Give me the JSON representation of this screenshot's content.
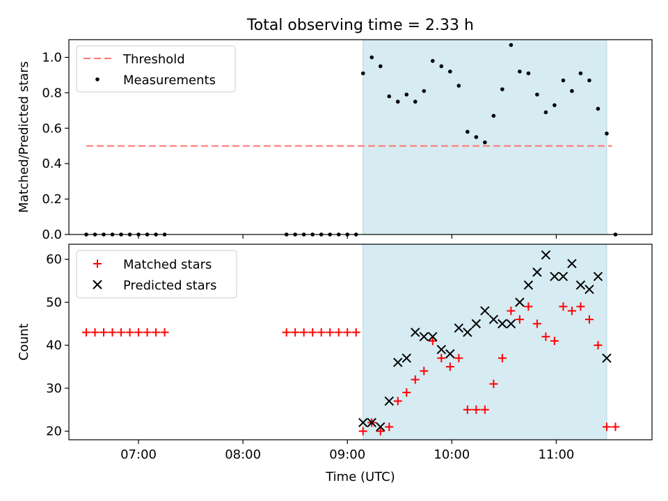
{
  "figure": {
    "title": "Total observing time = 2.33 h",
    "xlabel": "Time (UTC)"
  },
  "chart_data": [
    {
      "type": "scatter",
      "ylabel": "Matched/Predicted stars",
      "xlim": [
        "06:20",
        "11:55"
      ],
      "ylim": [
        0,
        1.1
      ],
      "yticks": [
        0.0,
        0.2,
        0.4,
        0.6,
        0.8,
        1.0
      ],
      "xticks": [
        "07:00",
        "08:00",
        "09:00",
        "10:00",
        "11:00"
      ],
      "show_x_tick_labels": false,
      "legend_position": "top-left",
      "shaded_region": {
        "start": "09:09",
        "end": "11:29",
        "color": "#add8e6"
      },
      "threshold": {
        "name": "Threshold",
        "value": 0.5,
        "start": "06:30",
        "end": "11:32",
        "color": "#ff7f7f"
      },
      "series": [
        {
          "name": "Measurements",
          "color": "#000000",
          "marker": "dot",
          "x": [
            "06:30",
            "06:35",
            "06:40",
            "06:45",
            "06:50",
            "06:55",
            "07:00",
            "07:05",
            "07:10",
            "07:15",
            "08:25",
            "08:30",
            "08:35",
            "08:40",
            "08:45",
            "08:50",
            "08:55",
            "09:00",
            "09:05",
            "09:09",
            "09:14",
            "09:19",
            "09:24",
            "09:29",
            "09:34",
            "09:39",
            "09:44",
            "09:49",
            "09:54",
            "09:59",
            "10:04",
            "10:09",
            "10:14",
            "10:19",
            "10:24",
            "10:29",
            "10:34",
            "10:39",
            "10:44",
            "10:49",
            "10:54",
            "10:59",
            "11:04",
            "11:09",
            "11:14",
            "11:19",
            "11:24",
            "11:29",
            "11:34"
          ],
          "y": [
            0,
            0,
            0,
            0,
            0,
            0,
            0,
            0,
            0,
            0,
            0,
            0,
            0,
            0,
            0,
            0,
            0,
            0,
            0,
            0.91,
            1.0,
            0.95,
            0.78,
            0.75,
            0.79,
            0.75,
            0.81,
            0.98,
            0.95,
            0.92,
            0.84,
            0.58,
            0.55,
            0.52,
            0.67,
            0.82,
            1.07,
            0.92,
            0.91,
            0.79,
            0.69,
            0.73,
            0.87,
            0.81,
            0.91,
            0.87,
            0.71,
            0.57,
            0
          ]
        }
      ]
    },
    {
      "type": "scatter",
      "ylabel": "Count",
      "xlabel": "Time (UTC)",
      "xlim": [
        "06:20",
        "11:55"
      ],
      "ylim": [
        18,
        63.5
      ],
      "yticks": [
        20,
        30,
        40,
        50,
        60
      ],
      "xticks": [
        "07:00",
        "08:00",
        "09:00",
        "10:00",
        "11:00"
      ],
      "legend_position": "top-left",
      "shaded_region": {
        "start": "09:09",
        "end": "11:29",
        "color": "#add8e6"
      },
      "series": [
        {
          "name": "Matched stars",
          "color": "#ff0000",
          "marker": "plus",
          "x": [
            "06:30",
            "06:35",
            "06:40",
            "06:45",
            "06:50",
            "06:55",
            "07:00",
            "07:05",
            "07:10",
            "07:15",
            "08:25",
            "08:30",
            "08:35",
            "08:40",
            "08:45",
            "08:50",
            "08:55",
            "09:00",
            "09:05",
            "09:09",
            "09:14",
            "09:19",
            "09:24",
            "09:29",
            "09:34",
            "09:39",
            "09:44",
            "09:49",
            "09:54",
            "09:59",
            "10:04",
            "10:09",
            "10:14",
            "10:19",
            "10:24",
            "10:29",
            "10:34",
            "10:39",
            "10:44",
            "10:49",
            "10:54",
            "10:59",
            "11:04",
            "11:09",
            "11:14",
            "11:19",
            "11:24",
            "11:29",
            "11:34"
          ],
          "y": [
            43,
            43,
            43,
            43,
            43,
            43,
            43,
            43,
            43,
            43,
            43,
            43,
            43,
            43,
            43,
            43,
            43,
            43,
            43,
            20,
            22,
            20,
            21,
            27,
            29,
            32,
            34,
            41,
            37,
            35,
            37,
            25,
            25,
            25,
            31,
            37,
            48,
            46,
            49,
            45,
            42,
            41,
            49,
            48,
            49,
            46,
            40,
            21,
            21
          ]
        },
        {
          "name": "Predicted stars",
          "color": "#000000",
          "marker": "x",
          "x": [
            "09:09",
            "09:14",
            "09:19",
            "09:24",
            "09:29",
            "09:34",
            "09:39",
            "09:44",
            "09:49",
            "09:54",
            "09:59",
            "10:04",
            "10:09",
            "10:14",
            "10:19",
            "10:24",
            "10:29",
            "10:34",
            "10:39",
            "10:44",
            "10:49",
            "10:54",
            "10:59",
            "11:04",
            "11:09",
            "11:14",
            "11:19",
            "11:24",
            "11:29"
          ],
          "y": [
            22,
            22,
            21,
            27,
            36,
            37,
            43,
            42,
            42,
            39,
            38,
            44,
            43,
            45,
            48,
            46,
            45,
            45,
            50,
            54,
            57,
            61,
            56,
            56,
            59,
            54,
            53,
            56,
            37
          ]
        }
      ]
    }
  ]
}
